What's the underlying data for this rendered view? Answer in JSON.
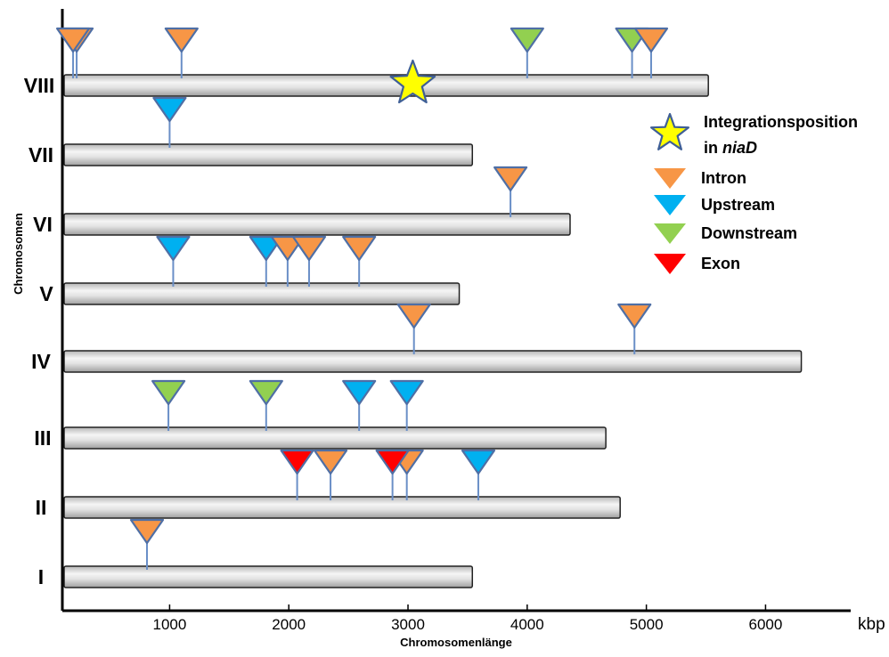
{
  "chart_data": {
    "type": "scatter",
    "title": "",
    "xlabel": "Chromosomenlänge",
    "ylabel": "Chromosomen",
    "x_unit": "kbp",
    "xlim": [
      100,
      6900
    ],
    "x_ticks": [
      1000,
      2000,
      3000,
      4000,
      5000,
      6000
    ],
    "grid": false,
    "legend_position": "right",
    "colors": {
      "Intron": "#f79646",
      "Upstream": "#00b0f0",
      "Downstream": "#92d050",
      "Exon": "#ff0000",
      "Integration": "#ffff00"
    },
    "chromosomes": [
      {
        "name": "VIII",
        "length": 5520
      },
      {
        "name": "VII",
        "length": 3540
      },
      {
        "name": "VI",
        "length": 4360
      },
      {
        "name": "V",
        "length": 3430
      },
      {
        "name": "IV",
        "length": 6300
      },
      {
        "name": "III",
        "length": 4660
      },
      {
        "name": "II",
        "length": 4780
      },
      {
        "name": "I",
        "length": 3540
      }
    ],
    "insertions": [
      {
        "chromosome": "VIII",
        "position": 220,
        "type": "Intron"
      },
      {
        "chromosome": "VIII",
        "position": 190,
        "type": "Intron"
      },
      {
        "chromosome": "VIII",
        "position": 1100,
        "type": "Intron"
      },
      {
        "chromosome": "VIII",
        "position": 4000,
        "type": "Downstream"
      },
      {
        "chromosome": "VIII",
        "position": 4880,
        "type": "Downstream"
      },
      {
        "chromosome": "VIII",
        "position": 5040,
        "type": "Intron"
      },
      {
        "chromosome": "VII",
        "position": 1000,
        "type": "Upstream"
      },
      {
        "chromosome": "VI",
        "position": 3860,
        "type": "Intron"
      },
      {
        "chromosome": "V",
        "position": 1030,
        "type": "Upstream"
      },
      {
        "chromosome": "V",
        "position": 1810,
        "type": "Upstream"
      },
      {
        "chromosome": "V",
        "position": 1990,
        "type": "Intron"
      },
      {
        "chromosome": "V",
        "position": 2170,
        "type": "Intron"
      },
      {
        "chromosome": "V",
        "position": 2590,
        "type": "Intron"
      },
      {
        "chromosome": "IV",
        "position": 3050,
        "type": "Intron"
      },
      {
        "chromosome": "IV",
        "position": 4900,
        "type": "Intron"
      },
      {
        "chromosome": "III",
        "position": 990,
        "type": "Downstream"
      },
      {
        "chromosome": "III",
        "position": 1810,
        "type": "Downstream"
      },
      {
        "chromosome": "III",
        "position": 2590,
        "type": "Upstream"
      },
      {
        "chromosome": "III",
        "position": 2990,
        "type": "Upstream"
      },
      {
        "chromosome": "II",
        "position": 2070,
        "type": "Exon"
      },
      {
        "chromosome": "II",
        "position": 2350,
        "type": "Intron"
      },
      {
        "chromosome": "II",
        "position": 2990,
        "type": "Intron"
      },
      {
        "chromosome": "II",
        "position": 2870,
        "type": "Exon"
      },
      {
        "chromosome": "II",
        "position": 3590,
        "type": "Upstream"
      },
      {
        "chromosome": "I",
        "position": 810,
        "type": "Intron"
      }
    ],
    "integration_site": {
      "chromosome": "VIII",
      "position": 3040
    },
    "legend": [
      {
        "key": "integration",
        "text_line1": "Integrationsposition",
        "text_line2_prefix": "in ",
        "text_line2_gene": "niaD"
      },
      {
        "key": "Intron",
        "label": "Intron"
      },
      {
        "key": "Upstream",
        "label": "Upstream"
      },
      {
        "key": "Downstream",
        "label": "Downstream"
      },
      {
        "key": "Exon",
        "label": "Exon"
      }
    ]
  }
}
